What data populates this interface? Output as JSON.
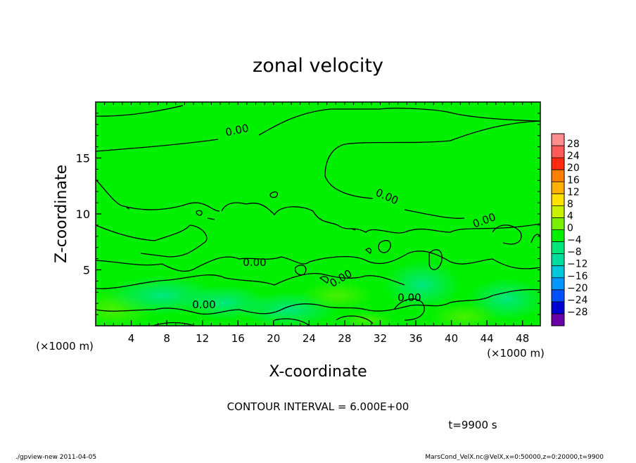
{
  "chart_data": {
    "type": "heatmap",
    "title": "zonal velocity",
    "xlabel": "X-coordinate",
    "ylabel": "Z-coordinate",
    "x_unit": "(×1000 m)",
    "y_unit": "(×1000 m)",
    "x_ticks": [
      4,
      8,
      12,
      16,
      20,
      24,
      28,
      32,
      36,
      40,
      44,
      48
    ],
    "y_ticks": [
      5,
      10,
      15
    ],
    "xlim": [
      0,
      50
    ],
    "ylim": [
      0,
      20
    ],
    "colorbar": {
      "levels": [
        28,
        24,
        20,
        16,
        12,
        8,
        4,
        0,
        -4,
        -8,
        -12,
        -16,
        -20,
        -24,
        -28
      ],
      "colors": [
        "#ff8f8f",
        "#ff5a5a",
        "#ff2a10",
        "#ff7f00",
        "#ffb000",
        "#ffe000",
        "#c8f000",
        "#78f000",
        "#00f000",
        "#00e678",
        "#00dca0",
        "#00c8dc",
        "#0096ff",
        "#0050ff",
        "#0000d0",
        "#6a00a8"
      ]
    },
    "contour_labels": [
      "0.00",
      "0.00",
      "0.00",
      "0.00",
      "0.00",
      "0.00",
      "0.00"
    ],
    "field_summary": "values mostly between -4 and 4 (green); slightly lower (cyan-green) near the bottom"
  },
  "annotations": {
    "contour_interval": "CONTOUR INTERVAL = 6.000E+00",
    "time": "t=9900 s",
    "footer_left": "./gpview-new   2011-04-05",
    "footer_right": "MarsCond_VelX.nc@VelX,x=0:50000,z=0:20000,t=9900"
  }
}
